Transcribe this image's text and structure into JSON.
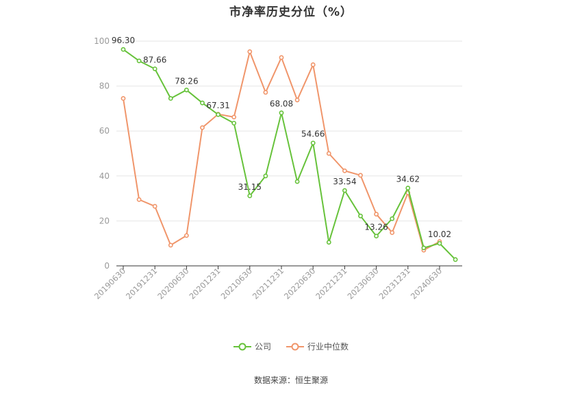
{
  "title": "市净率历史分位（%）",
  "source": "数据来源：恒生聚源",
  "colors": {
    "company": "#66c23a",
    "industry": "#f0956a",
    "grid": "#e6e6e6",
    "axis": "#333333",
    "tick_text": "#999999"
  },
  "chart_data": {
    "type": "line",
    "title": "市净率历史分位（%）",
    "xlabel": "",
    "ylabel": "",
    "ylim": [
      0,
      100
    ],
    "yticks": [
      0,
      20,
      40,
      60,
      80,
      100
    ],
    "grid": true,
    "legend_position": "bottom",
    "x": [
      "20190630",
      "20190930",
      "20191231",
      "20200331",
      "20200630",
      "20200930",
      "20201231",
      "20210331",
      "20210630",
      "20210930",
      "20211231",
      "20220331",
      "20220630",
      "20220930",
      "20221231",
      "20230331",
      "20230630",
      "20230930",
      "20231231",
      "20240331",
      "20240630",
      "20240930"
    ],
    "xtick_labels": [
      "20190630",
      "20191231",
      "20200630",
      "20201231",
      "20210630",
      "20211231",
      "20220630",
      "20221231",
      "20230630",
      "20231231",
      "20240630"
    ],
    "series": [
      {
        "name": "公司",
        "color": "#66c23a",
        "values": [
          96.3,
          91.2,
          87.66,
          74.5,
          78.26,
          72.5,
          67.31,
          63.5,
          31.15,
          40.0,
          68.08,
          37.5,
          54.66,
          10.5,
          33.54,
          22.2,
          13.26,
          21.0,
          34.62,
          8.0,
          10.02,
          2.8
        ],
        "data_labels": {
          "0": "96.30",
          "2": "87.66",
          "4": "78.26",
          "6": "67.31",
          "8": "31.15",
          "10": "68.08",
          "12": "54.66",
          "14": "33.54",
          "16": "13.26",
          "18": "34.62",
          "20": "10.02"
        }
      },
      {
        "name": "行业中位数",
        "color": "#f0956a",
        "values": [
          74.5,
          29.5,
          26.5,
          9.2,
          13.5,
          61.5,
          67.5,
          66.2,
          95.3,
          77.2,
          92.7,
          73.8,
          89.5,
          50.0,
          42.3,
          40.3,
          23.0,
          14.8,
          32.5,
          7.0,
          10.8,
          null
        ]
      }
    ]
  }
}
